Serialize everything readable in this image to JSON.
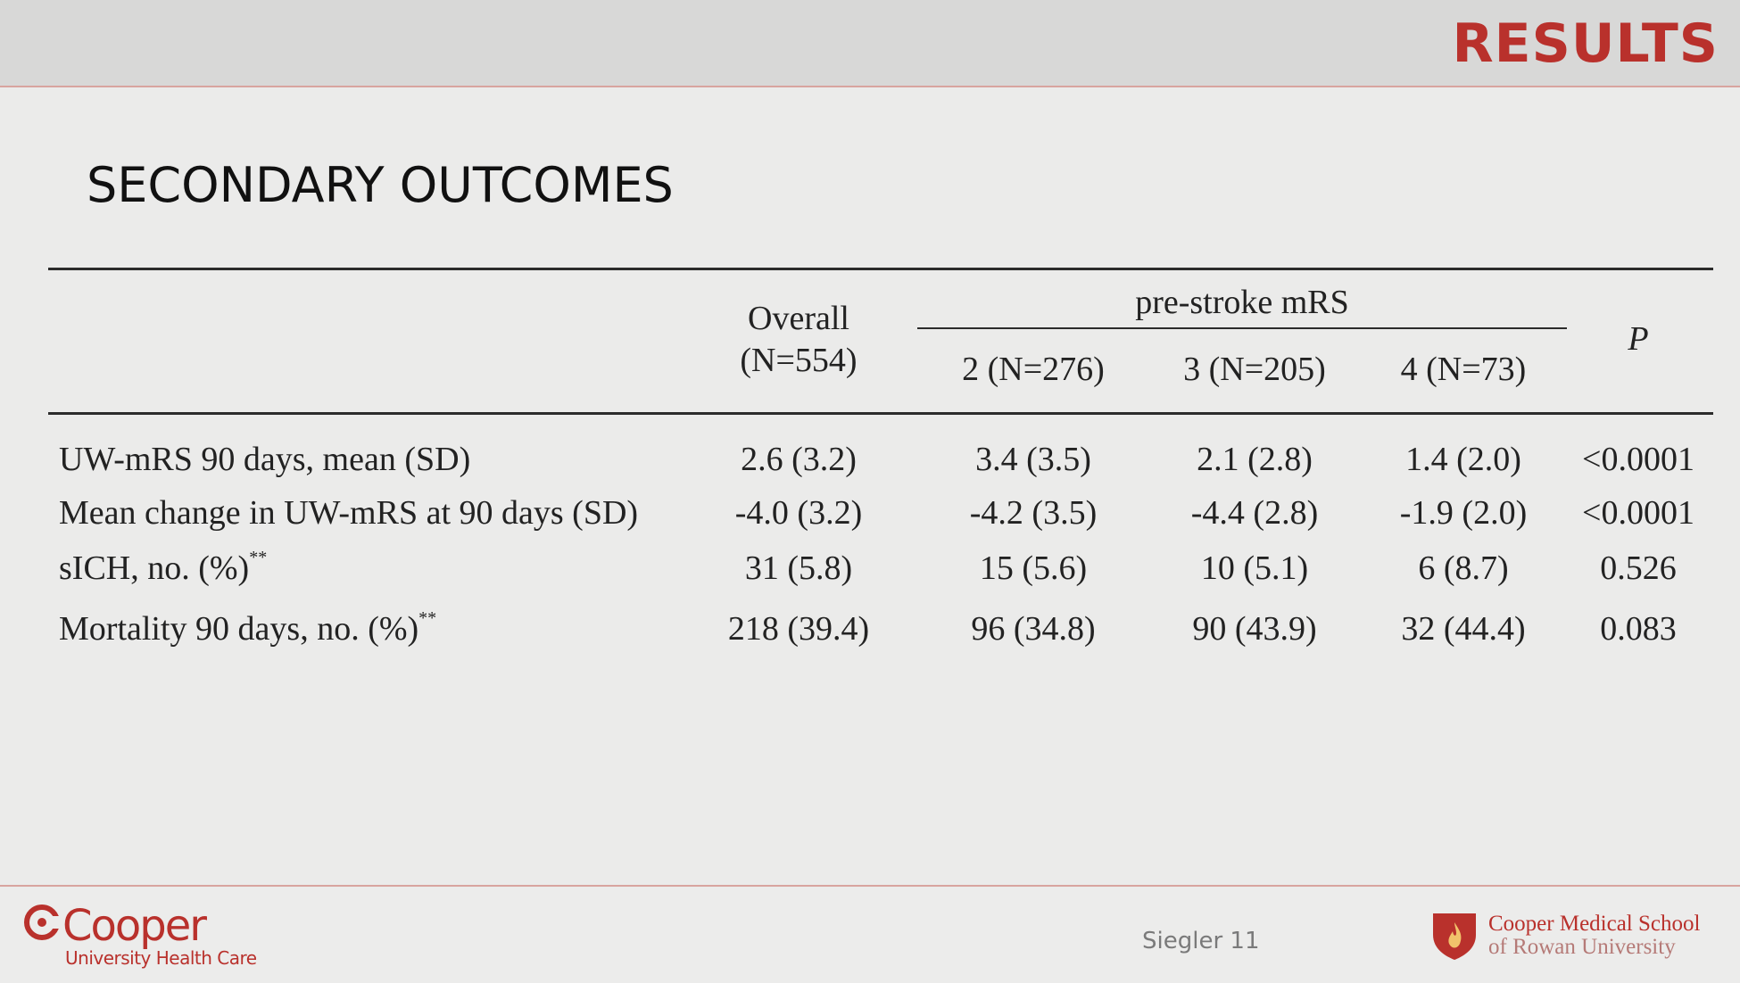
{
  "header": {
    "section_label": "RESULTS"
  },
  "slide": {
    "title": "SECONDARY OUTCOMES"
  },
  "table": {
    "group_header": "pre-stroke mRS",
    "columns": [
      {
        "label_line1": "Overall",
        "label_line2": "(N=554)"
      },
      {
        "label": "2 (N=276)"
      },
      {
        "label": "3 (N=205)"
      },
      {
        "label": "4 (N=73)"
      },
      {
        "label": "P"
      }
    ],
    "rows": [
      {
        "label": "UW-mRS 90 days, mean (SD)",
        "sup": "",
        "overall": "2.6 (3.2)",
        "mrs2": "3.4 (3.5)",
        "mrs3": "2.1 (2.8)",
        "mrs4": "1.4 (2.0)",
        "p": "<0.0001"
      },
      {
        "label": "Mean change in UW-mRS at 90 days (SD)",
        "sup": "",
        "overall": "-4.0 (3.2)",
        "mrs2": "-4.2 (3.5)",
        "mrs3": "-4.4 (2.8)",
        "mrs4": "-1.9 (2.0)",
        "p": "<0.0001"
      },
      {
        "label": "sICH, no. (%)",
        "sup": "**",
        "overall": "31 (5.8)",
        "mrs2": "15 (5.6)",
        "mrs3": "10 (5.1)",
        "mrs4": "6 (8.7)",
        "p": "0.526"
      },
      {
        "label": "Mortality 90 days, no. (%)",
        "sup": "**",
        "overall": "218 (39.4)",
        "mrs2": "96 (34.8)",
        "mrs3": "90 (43.9)",
        "mrs4": "32 (44.4)",
        "p": "0.083"
      }
    ]
  },
  "footer": {
    "left_logo_word": "Cooper",
    "left_logo_sub": "University Health Care",
    "page": "Siegler 11",
    "right_logo_line1": "Cooper Medical School",
    "right_logo_line2": "of Rowan University"
  },
  "colors": {
    "brand_red": "#b9312c",
    "background": "#ebebea",
    "header_bar": "#d8d8d7"
  },
  "icons": [
    "cooper-c-logo-icon",
    "shield-flame-icon"
  ]
}
